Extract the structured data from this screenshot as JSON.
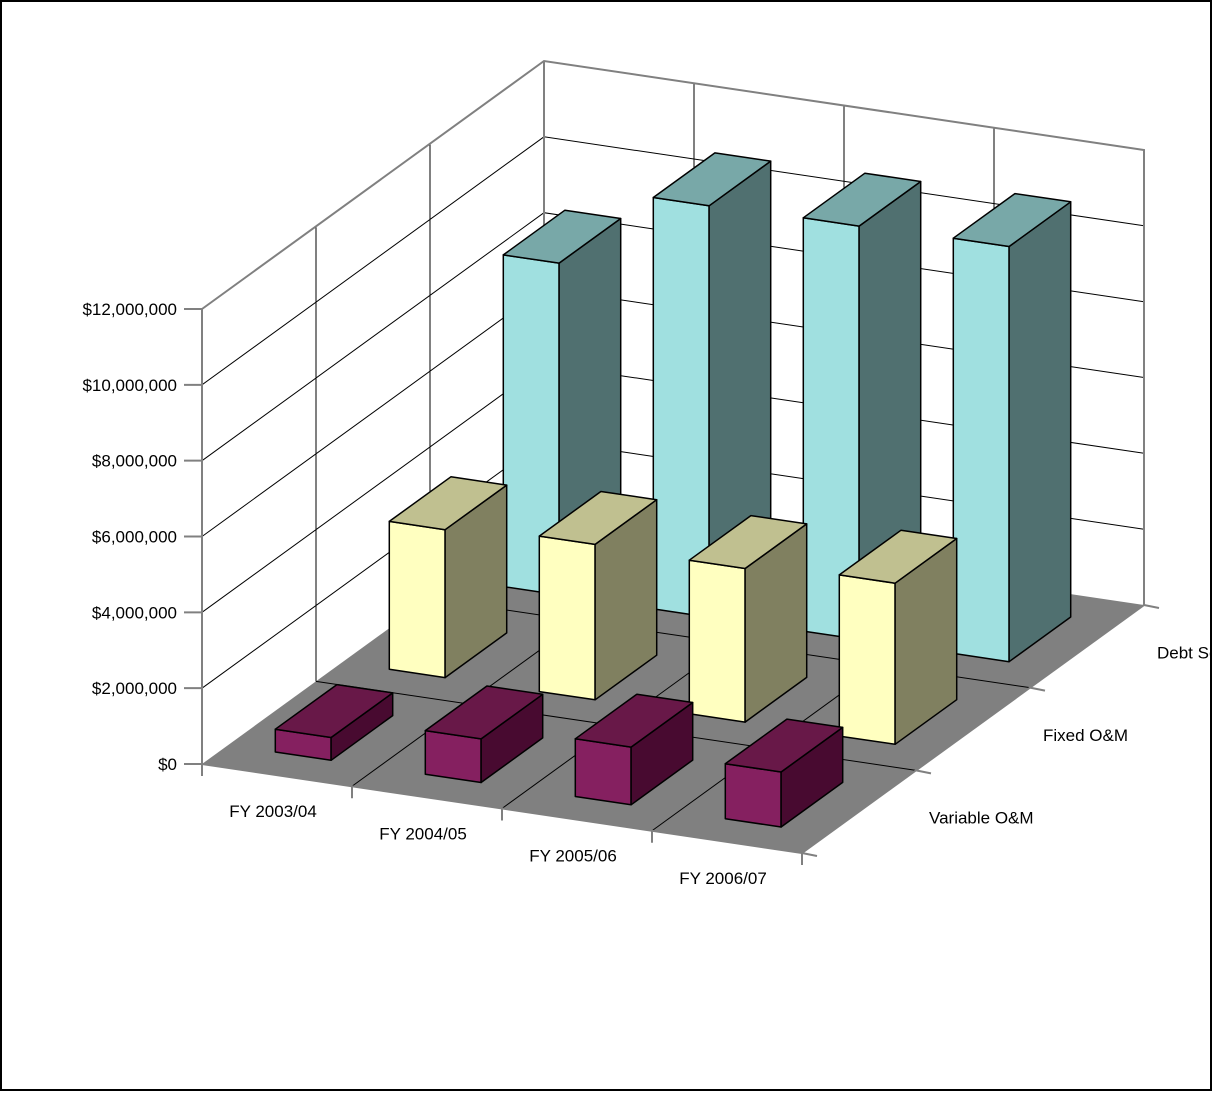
{
  "chart_data": {
    "type": "bar",
    "projection": "3d-column",
    "categories": [
      "FY 2003/04",
      "FY 2004/05",
      "FY 2005/06",
      "FY 2006/07"
    ],
    "series": [
      {
        "name": "Variable O&M",
        "values": [
          600000,
          1150000,
          1520000,
          1450000
        ]
      },
      {
        "name": "Fixed O&M",
        "values": [
          3900000,
          4100000,
          4050000,
          4250000
        ]
      },
      {
        "name": "Debt Service",
        "values": [
          8750000,
          10850000,
          10900000,
          10950000
        ]
      }
    ],
    "colors": {
      "Variable O&M": {
        "front": "#852060",
        "top": "#681848",
        "side": "#480a30"
      },
      "Fixed O&M": {
        "front": "#ffffc0",
        "top": "#c0c090",
        "side": "#808060"
      },
      "Debt Service": {
        "front": "#a0e0e0",
        "top": "#78a8a8",
        "side": "#507070"
      }
    },
    "y_ticks": [
      "$0",
      "$2,000,000",
      "$4,000,000",
      "$6,000,000",
      "$8,000,000",
      "$10,000,000",
      "$12,000,000"
    ],
    "ylim": [
      0,
      12000000
    ],
    "y_major_step": 2000000,
    "title": "",
    "xlabel": "",
    "ylabel": "",
    "grid": true,
    "legend": "none",
    "floor_color": "#808080",
    "wall_color": "#ffffff",
    "grid_color": "#000000"
  }
}
